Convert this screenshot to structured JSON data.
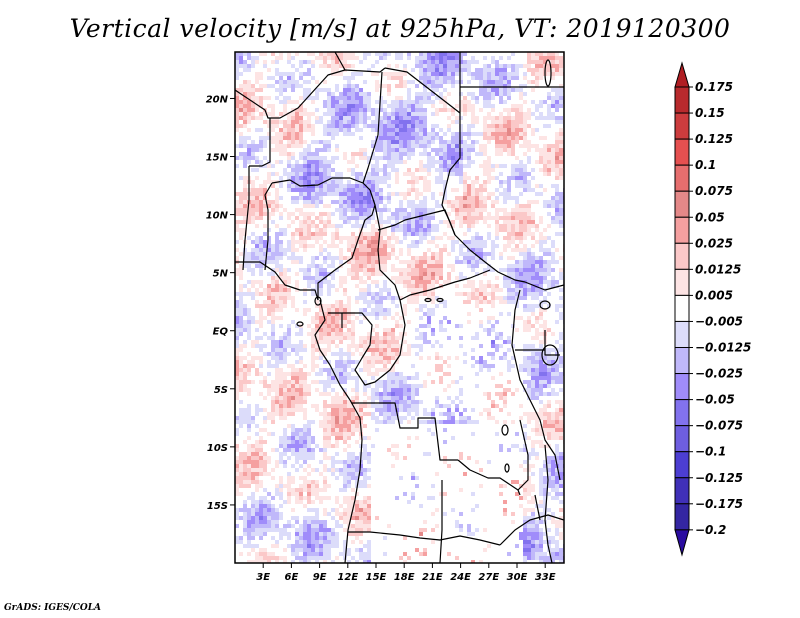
{
  "title": "Vertical velocity [m/s] at 925hPa, VT: 2019120300",
  "credit": "GrADS: IGES/COLA",
  "map": {
    "variable": "Vertical velocity",
    "units": "m/s",
    "level": "925hPa",
    "valid_time": "2019120300",
    "lon_range": [
      0,
      35
    ],
    "lat_range": [
      -20,
      24
    ],
    "lat_ticks": [
      {
        "value": 20,
        "label": "20N"
      },
      {
        "value": 15,
        "label": "15N"
      },
      {
        "value": 10,
        "label": "10N"
      },
      {
        "value": 5,
        "label": "5N"
      },
      {
        "value": 0,
        "label": "EQ"
      },
      {
        "value": -5,
        "label": "5S"
      },
      {
        "value": -10,
        "label": "10S"
      },
      {
        "value": -15,
        "label": "15S"
      }
    ],
    "lon_ticks": [
      {
        "value": 3,
        "label": "3E"
      },
      {
        "value": 6,
        "label": "6E"
      },
      {
        "value": 9,
        "label": "9E"
      },
      {
        "value": 12,
        "label": "12E"
      },
      {
        "value": 15,
        "label": "15E"
      },
      {
        "value": 18,
        "label": "18E"
      },
      {
        "value": 21,
        "label": "21E"
      },
      {
        "value": 24,
        "label": "24E"
      },
      {
        "value": 27,
        "label": "27E"
      },
      {
        "value": 30,
        "label": "30E"
      },
      {
        "value": 33,
        "label": "33E"
      }
    ]
  },
  "colorbar": {
    "labels": [
      "0.175",
      "0.15",
      "0.125",
      "0.1",
      "0.075",
      "0.05",
      "0.025",
      "0.0125",
      "0.005",
      "-0.005",
      "-0.0125",
      "-0.025",
      "-0.05",
      "-0.075",
      "-0.1",
      "-0.125",
      "-0.175",
      "-0.2"
    ],
    "colors": [
      "#b01e23",
      "#b82a2d",
      "#cc3c3e",
      "#e55050",
      "#e66e6e",
      "#e48888",
      "#f5a0a0",
      "#fbc8c8",
      "#fde4e4",
      "#ffffff",
      "#dcdcfa",
      "#c0b8fa",
      "#a08cfa",
      "#8272ee",
      "#6e5ee0",
      "#4c3ed2",
      "#4030b8",
      "#3426a2",
      "#2a1a96"
    ],
    "arrow_top_color": "#b01e23",
    "arrow_bottom_color": "#2a0ca0"
  },
  "chart_data": {
    "type": "heatmap",
    "title": "Vertical velocity [m/s] at 925hPa, VT: 2019120300",
    "xlabel": "",
    "ylabel": "",
    "x_ticks": [
      "3E",
      "6E",
      "9E",
      "12E",
      "15E",
      "18E",
      "21E",
      "24E",
      "27E",
      "30E",
      "33E"
    ],
    "y_ticks": [
      "20N",
      "15N",
      "10N",
      "5N",
      "EQ",
      "5S",
      "10S",
      "15S"
    ],
    "x_range_deg": [
      0,
      35
    ],
    "y_range_deg": [
      -20,
      24
    ],
    "color_levels": [
      -0.2,
      -0.175,
      -0.125,
      -0.1,
      -0.075,
      -0.05,
      -0.025,
      -0.0125,
      -0.005,
      0.005,
      0.0125,
      0.025,
      0.05,
      0.075,
      0.1,
      0.125,
      0.15,
      0.175
    ],
    "legend": "right",
    "notes": "Noisy field of small-magnitude vertical velocity (mostly within ±0.05 m/s) over central Africa; near-zero (white) over interior Angola/Zambia/Congo basin; stronger negative (blue) patches over Chad, Niger and the Great Rift lakes; positive (red) bands over Nigeria, Cameroon and coastal Angola."
  }
}
